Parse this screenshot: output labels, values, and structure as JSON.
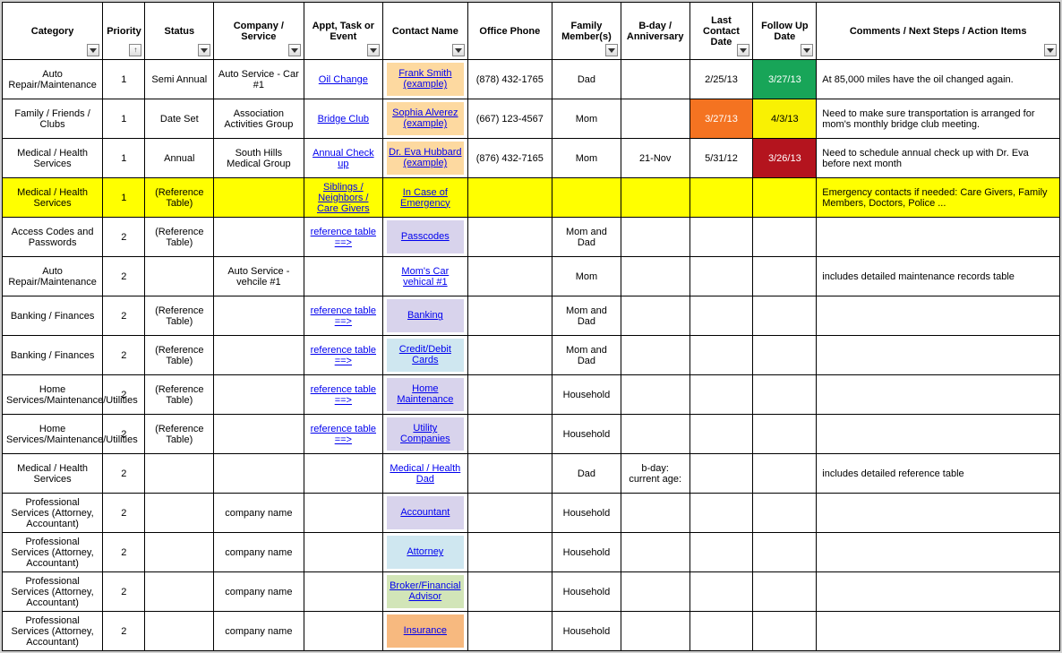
{
  "columns": [
    {
      "key": "category",
      "label": "Category",
      "width": "9.5%",
      "filter": true
    },
    {
      "key": "priority",
      "label": "Priority",
      "width": "4%",
      "filter": "sort"
    },
    {
      "key": "status",
      "label": "Status",
      "width": "6.5%",
      "filter": true
    },
    {
      "key": "company",
      "label": "Company / Service",
      "width": "8.5%",
      "filter": true
    },
    {
      "key": "task",
      "label": "Appt, Task or Event",
      "width": "7.5%",
      "filter": true
    },
    {
      "key": "contact",
      "label": "Contact Name",
      "width": "8%",
      "filter": true
    },
    {
      "key": "phone",
      "label": "Office Phone",
      "width": "8%",
      "filter": false
    },
    {
      "key": "family",
      "label": "Family Member(s)",
      "width": "6.5%",
      "filter": true
    },
    {
      "key": "bday",
      "label": "B-day / Anniversary",
      "width": "6.5%",
      "filter": false
    },
    {
      "key": "lastcontact",
      "label": "Last Contact Date",
      "width": "6%",
      "filter": true
    },
    {
      "key": "followup",
      "label": "Follow Up Date",
      "width": "6%",
      "filter": true
    },
    {
      "key": "comments",
      "label": "Comments / Next Steps / Action Items",
      "width": "23%",
      "filter": true
    }
  ],
  "colors": {
    "contact_peach": "#fdd9a0",
    "contact_lavender": "#d8d3ec",
    "contact_blue": "#cfe7f0",
    "contact_green": "#d2e5b8",
    "contact_orange": "#f7b97f",
    "followup_green": "#18a558",
    "followup_yellow": "#f9f103",
    "followup_red": "#b4141e",
    "lastcontact_orange": "#f47321",
    "row_yellow": "#ffff00"
  },
  "rows": [
    {
      "category": "Auto Repair/Maintenance",
      "priority": "1",
      "status": "Semi Annual",
      "company": "Auto Service - Car #1",
      "task": "Oil Change",
      "task_link": true,
      "contact": "Frank Smith (example)",
      "contact_bg": "contact_peach",
      "phone": "(878) 432-1765",
      "family": "Dad",
      "bday": "",
      "lastcontact": "2/25/13",
      "followup": "3/27/13",
      "followup_bg": "followup_green",
      "followup_color": "#ffffff",
      "comments": "At 85,000 miles have the oil changed again."
    },
    {
      "category": "Family / Friends / Clubs",
      "priority": "1",
      "status": "Date Set",
      "company": "Association Activities Group",
      "task": "Bridge Club",
      "task_link": true,
      "contact": "Sophia Alverez (example)",
      "contact_bg": "contact_peach",
      "phone": "(667) 123-4567",
      "family": "Mom",
      "bday": "",
      "lastcontact": "3/27/13",
      "lastcontact_bg": "lastcontact_orange",
      "lastcontact_color": "#ffffff",
      "followup": "4/3/13",
      "followup_bg": "followup_yellow",
      "comments": "Need to make sure transportation is arranged for mom's monthly bridge club meeting."
    },
    {
      "category": "Medical / Health Services",
      "priority": "1",
      "status": "Annual",
      "company": "South Hills Medical Group",
      "task": "Annual Check up",
      "task_link": true,
      "contact": "Dr. Eva Hubbard (example)",
      "contact_bg": "contact_peach",
      "phone": "(876) 432-7165",
      "family": "Mom",
      "bday": "21-Nov",
      "lastcontact": "5/31/12",
      "followup": "3/26/13",
      "followup_bg": "followup_red",
      "followup_color": "#ffffff",
      "comments": "Need to schedule annual check up with Dr. Eva before next month"
    },
    {
      "row_highlight": true,
      "category": "Medical / Health Services",
      "priority": "1",
      "status": "(Reference Table)",
      "company": "",
      "task": "Siblings / Neighbors / Care Givers",
      "task_link": true,
      "contact": "In Case of Emergency",
      "contact_link": true,
      "phone": "",
      "family": "",
      "bday": "",
      "lastcontact": "",
      "followup": "",
      "comments": "Emergency contacts if needed: Care Givers, Family Members, Doctors, Police ..."
    },
    {
      "category": "Access Codes and Passwords",
      "priority": "2",
      "status": "(Reference Table)",
      "company": "",
      "task": "reference table ==>",
      "task_link": true,
      "contact": "Passcodes",
      "contact_bg": "contact_lavender",
      "phone": "",
      "family": "Mom and Dad",
      "bday": "",
      "lastcontact": "",
      "followup": "",
      "comments": ""
    },
    {
      "category": "Auto Repair/Maintenance",
      "priority": "2",
      "status": "",
      "company": "Auto Service - vehcile #1",
      "task": "",
      "contact": "Mom's Car vehical #1",
      "contact_link": true,
      "phone": "",
      "family": "Mom",
      "bday": "",
      "lastcontact": "",
      "followup": "",
      "comments": "includes detailed maintenance records table"
    },
    {
      "category": "Banking / Finances",
      "priority": "2",
      "status": "(Reference Table)",
      "company": "",
      "task": "reference table ==>",
      "task_link": true,
      "contact": "Banking",
      "contact_bg": "contact_lavender",
      "phone": "",
      "family": "Mom and Dad",
      "bday": "",
      "lastcontact": "",
      "followup": "",
      "comments": ""
    },
    {
      "category": "Banking / Finances",
      "priority": "2",
      "status": "(Reference Table)",
      "company": "",
      "task": "reference table ==>",
      "task_link": true,
      "contact": "Credit/Debit Cards",
      "contact_bg": "contact_blue",
      "phone": "",
      "family": "Mom and Dad",
      "bday": "",
      "lastcontact": "",
      "followup": "",
      "comments": ""
    },
    {
      "category": "Home Services/Maintenance/Utilities",
      "priority": "2",
      "status": "(Reference Table)",
      "company": "",
      "task": "reference table ==>",
      "task_link": true,
      "contact": "Home Maintenance",
      "contact_bg": "contact_lavender",
      "phone": "",
      "family": "Household",
      "bday": "",
      "lastcontact": "",
      "followup": "",
      "comments": ""
    },
    {
      "category": "Home Services/Maintenance/Utilities",
      "priority": "2",
      "status": "(Reference Table)",
      "company": "",
      "task": "reference table ==>",
      "task_link": true,
      "contact": "Utility Companies",
      "contact_bg": "contact_lavender",
      "phone": "",
      "family": "Household",
      "bday": "",
      "lastcontact": "",
      "followup": "",
      "comments": ""
    },
    {
      "category": "Medical / Health Services",
      "priority": "2",
      "status": "",
      "company": "",
      "task": "",
      "contact": "Medical / Health Dad",
      "contact_link": true,
      "phone": "",
      "family": "Dad",
      "bday": "b-day:      current age:",
      "lastcontact": "",
      "followup": "",
      "comments": "includes detailed reference table"
    },
    {
      "category": "Professional Services (Attorney, Accountant)",
      "priority": "2",
      "status": "",
      "company": "company name",
      "task": "",
      "contact": "Accountant",
      "contact_bg": "contact_lavender",
      "phone": "",
      "family": "Household",
      "bday": "",
      "lastcontact": "",
      "followup": "",
      "comments": ""
    },
    {
      "category": "Professional Services (Attorney, Accountant)",
      "priority": "2",
      "status": "",
      "company": "company name",
      "task": "",
      "contact": "Attorney",
      "contact_bg": "contact_blue",
      "phone": "",
      "family": "Household",
      "bday": "",
      "lastcontact": "",
      "followup": "",
      "comments": ""
    },
    {
      "category": "Professional Services (Attorney, Accountant)",
      "priority": "2",
      "status": "",
      "company": "company name",
      "task": "",
      "contact": "Broker/Financial Advisor",
      "contact_bg": "contact_green",
      "phone": "",
      "family": "Household",
      "bday": "",
      "lastcontact": "",
      "followup": "",
      "comments": ""
    },
    {
      "category": "Professional Services (Attorney, Accountant)",
      "priority": "2",
      "status": "",
      "company": "company name",
      "task": "",
      "contact": "Insurance",
      "contact_bg": "contact_orange",
      "phone": "",
      "family": "Household",
      "bday": "",
      "lastcontact": "",
      "followup": "",
      "comments": ""
    }
  ]
}
